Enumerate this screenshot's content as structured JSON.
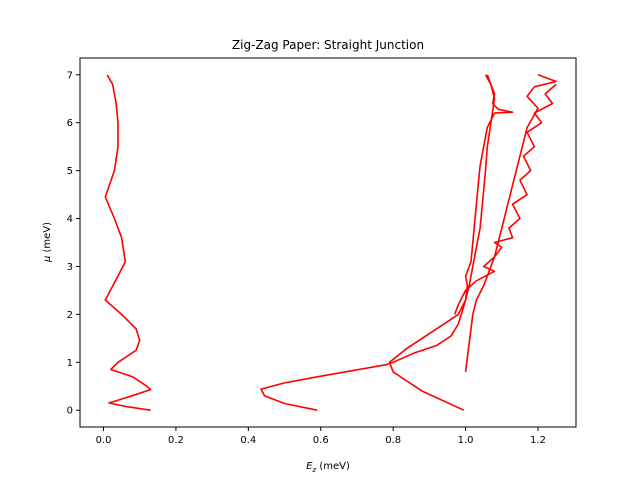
{
  "chart_data": {
    "type": "line",
    "title": "Zig-Zag Paper: Straight Junction",
    "xlabel_main": "E",
    "xlabel_sub": "z",
    "xlabel_unit": " (meV)",
    "ylabel_main": "μ",
    "ylabel_unit": " (meV)",
    "xlim": [
      -0.065,
      1.305
    ],
    "ylim": [
      -0.35,
      7.35
    ],
    "xticks": [
      "0.0",
      "0.2",
      "0.4",
      "0.6",
      "0.8",
      "1.0",
      "1.2"
    ],
    "xtick_values": [
      0.0,
      0.2,
      0.4,
      0.6,
      0.8,
      1.0,
      1.2
    ],
    "yticks": [
      "0",
      "1",
      "2",
      "3",
      "4",
      "5",
      "6",
      "7"
    ],
    "ytick_values": [
      0,
      1,
      2,
      3,
      4,
      5,
      6,
      7
    ],
    "grid": false,
    "line_color": "#ff0000",
    "series": [
      {
        "points": [
          [
            0.13,
            0.0
          ],
          [
            0.06,
            0.08
          ],
          [
            0.015,
            0.15
          ],
          [
            0.07,
            0.28
          ],
          [
            0.13,
            0.43
          ],
          [
            0.12,
            0.5
          ],
          [
            0.08,
            0.7
          ],
          [
            0.02,
            0.85
          ],
          [
            0.04,
            1.0
          ],
          [
            0.06,
            1.1
          ],
          [
            0.09,
            1.25
          ],
          [
            0.1,
            1.45
          ],
          [
            0.09,
            1.7
          ],
          [
            0.05,
            2.0
          ],
          [
            0.005,
            2.3
          ],
          [
            0.04,
            2.8
          ],
          [
            0.06,
            3.1
          ],
          [
            0.05,
            3.6
          ],
          [
            0.03,
            4.0
          ],
          [
            0.005,
            4.45
          ],
          [
            0.03,
            5.0
          ],
          [
            0.04,
            5.5
          ],
          [
            0.04,
            6.0
          ],
          [
            0.035,
            6.4
          ],
          [
            0.025,
            6.8
          ],
          [
            0.01,
            7.0
          ]
        ]
      },
      {
        "points": [
          [
            0.59,
            0.0
          ],
          [
            0.5,
            0.14
          ],
          [
            0.445,
            0.3
          ],
          [
            0.435,
            0.44
          ],
          [
            0.5,
            0.57
          ],
          [
            0.6,
            0.71
          ],
          [
            0.78,
            0.95
          ],
          [
            0.8,
            1.0
          ],
          [
            0.86,
            1.2
          ],
          [
            0.92,
            1.35
          ],
          [
            0.96,
            1.55
          ],
          [
            0.98,
            1.8
          ],
          [
            0.99,
            2.05
          ],
          [
            1.0,
            2.3
          ],
          [
            1.01,
            2.6
          ],
          [
            1.02,
            3.0
          ],
          [
            1.03,
            3.4
          ],
          [
            1.04,
            3.8
          ],
          [
            1.045,
            4.2
          ],
          [
            1.05,
            4.6
          ],
          [
            1.055,
            5.0
          ],
          [
            1.06,
            5.5
          ],
          [
            1.07,
            6.0
          ],
          [
            1.08,
            6.5
          ],
          [
            1.07,
            6.8
          ],
          [
            1.06,
            7.0
          ]
        ]
      },
      {
        "points": [
          [
            0.995,
            0.0
          ],
          [
            0.88,
            0.4
          ],
          [
            0.8,
            0.8
          ],
          [
            0.79,
            1.0
          ],
          [
            0.84,
            1.3
          ],
          [
            0.92,
            1.7
          ],
          [
            0.98,
            2.0
          ],
          [
            1.0,
            2.3
          ],
          [
            1.005,
            2.6
          ],
          [
            1.0,
            2.8
          ],
          [
            1.015,
            3.1
          ],
          [
            1.02,
            3.5
          ],
          [
            1.025,
            3.9
          ],
          [
            1.03,
            4.3
          ],
          [
            1.035,
            4.7
          ],
          [
            1.04,
            5.1
          ],
          [
            1.05,
            5.5
          ],
          [
            1.06,
            5.9
          ],
          [
            1.08,
            6.2
          ],
          [
            1.13,
            6.22
          ],
          [
            1.09,
            6.28
          ],
          [
            1.075,
            6.4
          ],
          [
            1.08,
            6.6
          ],
          [
            1.07,
            6.8
          ],
          [
            1.055,
            7.0
          ]
        ]
      },
      {
        "points": [
          [
            1.0,
            0.8
          ],
          [
            1.005,
            1.1
          ],
          [
            1.01,
            1.4
          ],
          [
            1.015,
            1.7
          ],
          [
            1.02,
            2.0
          ],
          [
            1.03,
            2.3
          ],
          [
            1.05,
            2.6
          ],
          [
            1.065,
            2.9
          ],
          [
            1.08,
            3.2
          ],
          [
            1.09,
            3.5
          ],
          [
            1.1,
            3.8
          ],
          [
            1.11,
            4.1
          ],
          [
            1.12,
            4.4
          ],
          [
            1.13,
            4.7
          ],
          [
            1.14,
            5.0
          ],
          [
            1.15,
            5.3
          ],
          [
            1.16,
            5.6
          ],
          [
            1.17,
            5.9
          ],
          [
            1.185,
            6.1
          ],
          [
            1.2,
            6.3
          ],
          [
            1.17,
            6.55
          ],
          [
            1.19,
            6.75
          ],
          [
            1.25,
            6.86
          ],
          [
            1.2,
            7.0
          ]
        ]
      },
      {
        "points": [
          [
            0.97,
            2.0
          ],
          [
            0.98,
            2.2
          ],
          [
            1.0,
            2.5
          ],
          [
            1.03,
            2.7
          ],
          [
            1.08,
            2.9
          ],
          [
            1.05,
            3.0
          ],
          [
            1.08,
            3.2
          ],
          [
            1.1,
            3.4
          ],
          [
            1.08,
            3.5
          ],
          [
            1.13,
            3.6
          ],
          [
            1.12,
            3.8
          ],
          [
            1.15,
            4.0
          ],
          [
            1.13,
            4.3
          ],
          [
            1.17,
            4.5
          ],
          [
            1.15,
            4.8
          ],
          [
            1.18,
            5.0
          ],
          [
            1.16,
            5.3
          ],
          [
            1.19,
            5.5
          ],
          [
            1.17,
            5.8
          ],
          [
            1.21,
            6.0
          ],
          [
            1.19,
            6.2
          ],
          [
            1.24,
            6.4
          ],
          [
            1.22,
            6.6
          ],
          [
            1.25,
            6.8
          ]
        ]
      }
    ]
  }
}
